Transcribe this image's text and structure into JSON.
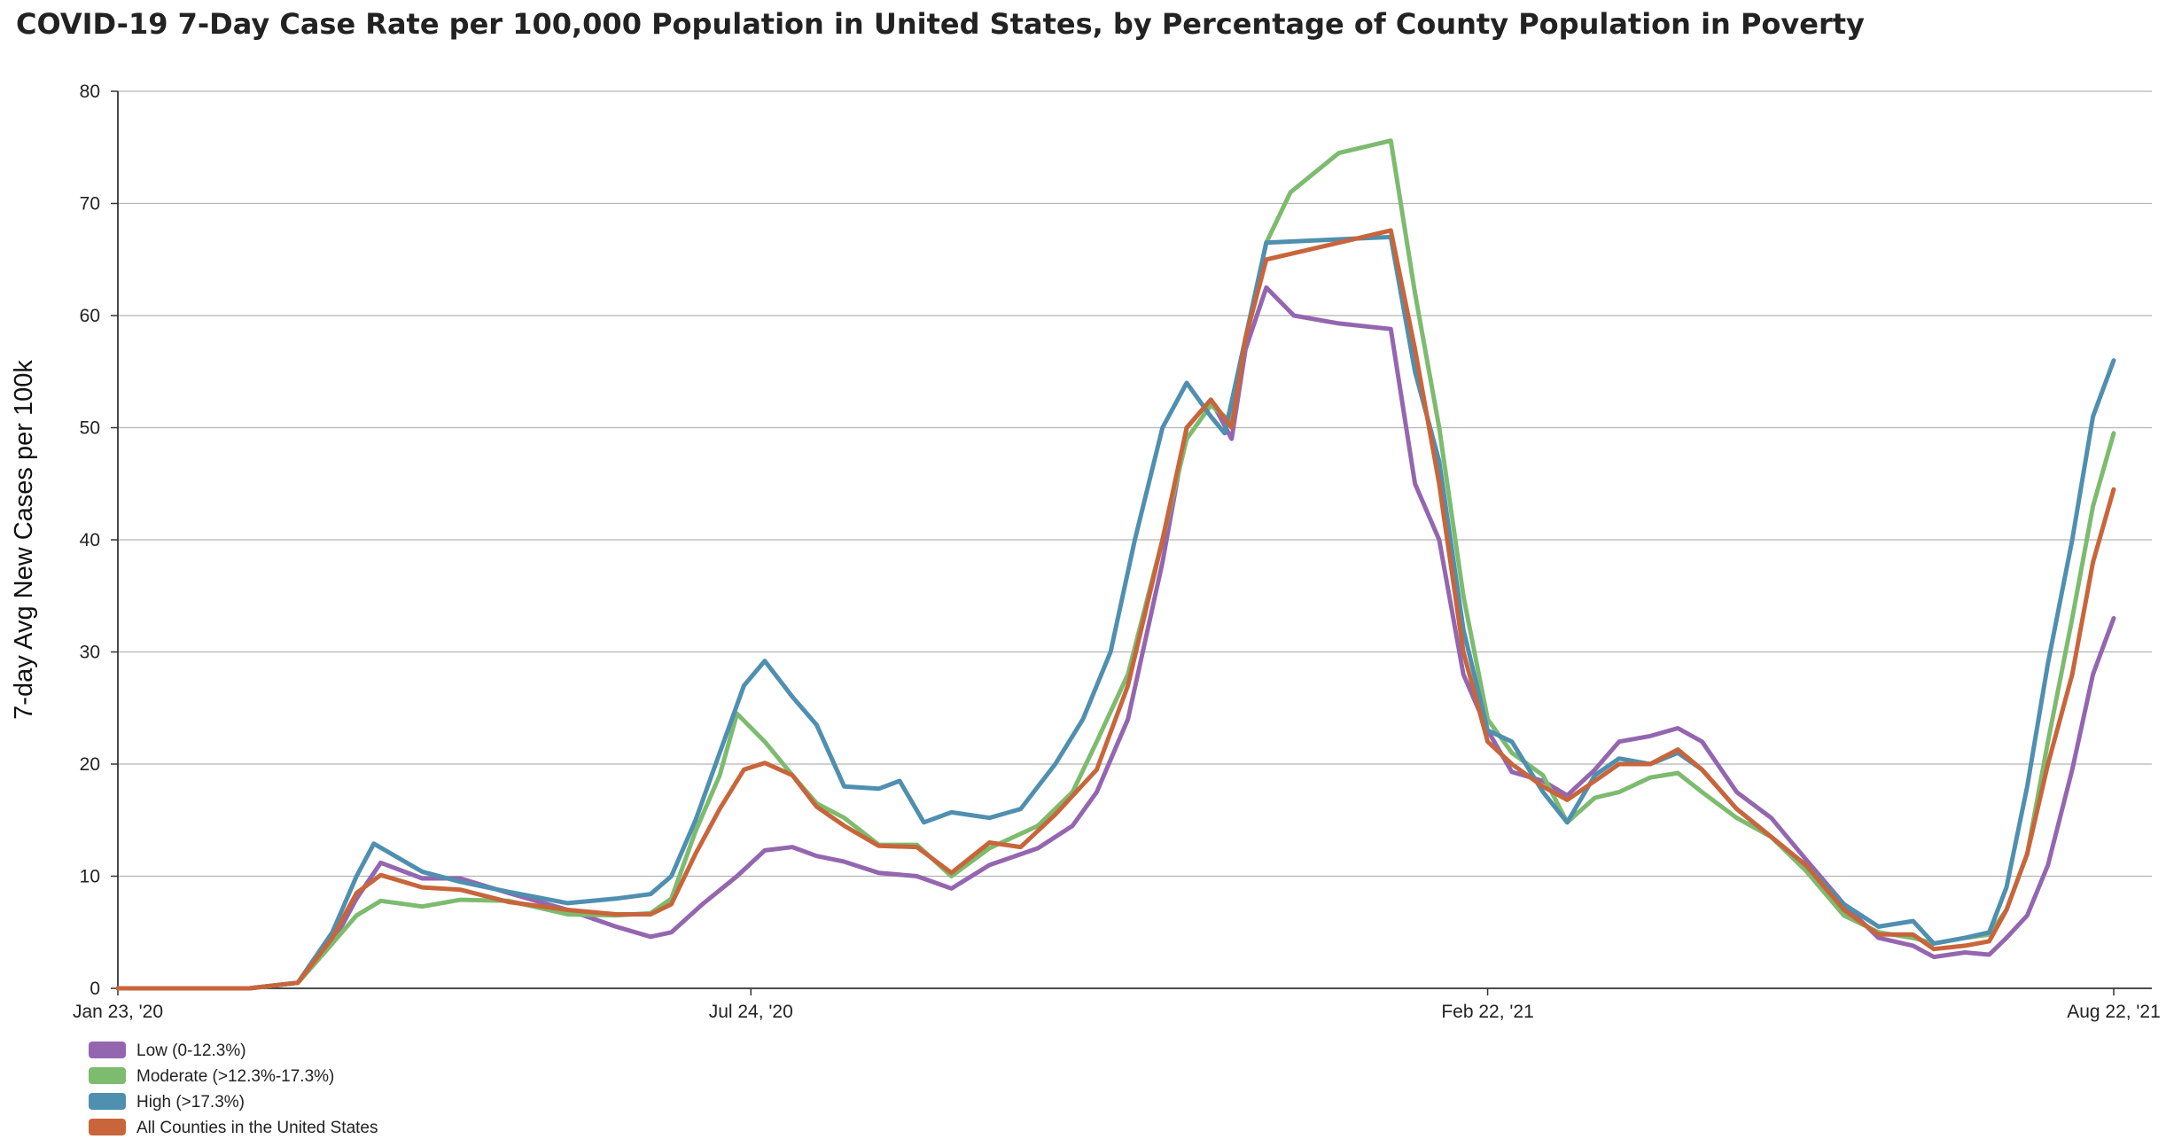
{
  "chart_data": {
    "type": "line",
    "title": "COVID-19 7-Day Case Rate per 100,000 Population in United States, by Percentage of County Population in Poverty",
    "ylabel": "7-day Avg New Cases per 100k",
    "xlabel": "",
    "x_range": [
      "2020-01-23",
      "2021-08-22"
    ],
    "x_ticks": [
      {
        "date": "2020-01-23",
        "label": "Jan 23, '20"
      },
      {
        "date": "2020-07-24",
        "label": "Jul 24, '20"
      },
      {
        "date": "2021-02-22",
        "label": "Feb 22, '21"
      },
      {
        "date": "2021-08-22",
        "label": "Aug 22, '21"
      }
    ],
    "ylim": [
      0,
      80
    ],
    "y_ticks": [
      0,
      10,
      20,
      30,
      40,
      50,
      60,
      70,
      80
    ],
    "grid": "horizontal",
    "legend_position": "bottom-left",
    "series": [
      {
        "name": "Low (0-12.3%)",
        "color": "#9466b0",
        "points": [
          [
            "2020-01-23",
            0
          ],
          [
            "2020-03-01",
            0
          ],
          [
            "2020-03-15",
            0.5
          ],
          [
            "2020-03-25",
            4
          ],
          [
            "2020-04-01",
            8
          ],
          [
            "2020-04-08",
            11.2
          ],
          [
            "2020-04-20",
            9.8
          ],
          [
            "2020-05-01",
            9.8
          ],
          [
            "2020-05-15",
            8.5
          ],
          [
            "2020-06-01",
            7
          ],
          [
            "2020-06-15",
            5.5
          ],
          [
            "2020-06-25",
            4.6
          ],
          [
            "2020-07-01",
            5
          ],
          [
            "2020-07-10",
            7.5
          ],
          [
            "2020-07-20",
            10
          ],
          [
            "2020-07-28",
            12.3
          ],
          [
            "2020-08-05",
            12.6
          ],
          [
            "2020-08-12",
            11.8
          ],
          [
            "2020-08-20",
            11.3
          ],
          [
            "2020-08-30",
            10.3
          ],
          [
            "2020-09-10",
            10
          ],
          [
            "2020-09-20",
            8.9
          ],
          [
            "2020-10-01",
            11
          ],
          [
            "2020-10-15",
            12.5
          ],
          [
            "2020-10-25",
            14.5
          ],
          [
            "2020-11-01",
            17.5
          ],
          [
            "2020-11-10",
            24
          ],
          [
            "2020-11-20",
            38
          ],
          [
            "2020-11-27",
            50
          ],
          [
            "2020-12-04",
            52.5
          ],
          [
            "2020-12-10",
            49
          ],
          [
            "2020-12-14",
            57
          ],
          [
            "2020-12-20",
            62.5
          ],
          [
            "2020-12-28",
            60
          ],
          [
            "2021-01-10",
            59.3
          ],
          [
            "2021-01-25",
            58.8
          ],
          [
            "2021-02-01",
            45
          ],
          [
            "2021-02-08",
            40
          ],
          [
            "2021-02-15",
            28
          ],
          [
            "2021-02-22",
            23
          ],
          [
            "2021-03-01",
            19.3
          ],
          [
            "2021-03-10",
            18.5
          ],
          [
            "2021-03-17",
            17.2
          ],
          [
            "2021-03-25",
            19.5
          ],
          [
            "2021-04-01",
            22
          ],
          [
            "2021-04-10",
            22.5
          ],
          [
            "2021-04-18",
            23.2
          ],
          [
            "2021-04-25",
            22
          ],
          [
            "2021-05-05",
            17.5
          ],
          [
            "2021-05-15",
            15.2
          ],
          [
            "2021-05-25",
            11.5
          ],
          [
            "2021-06-05",
            7.5
          ],
          [
            "2021-06-15",
            4.5
          ],
          [
            "2021-06-25",
            3.8
          ],
          [
            "2021-07-01",
            2.8
          ],
          [
            "2021-07-10",
            3.2
          ],
          [
            "2021-07-17",
            3
          ],
          [
            "2021-07-22",
            4.5
          ],
          [
            "2021-07-28",
            6.5
          ],
          [
            "2021-08-03",
            11
          ],
          [
            "2021-08-10",
            19.5
          ],
          [
            "2021-08-16",
            28
          ],
          [
            "2021-08-22",
            33
          ]
        ]
      },
      {
        "name": "Moderate (>12.3%-17.3%)",
        "color": "#7dbb6f",
        "points": [
          [
            "2020-01-23",
            0
          ],
          [
            "2020-03-01",
            0
          ],
          [
            "2020-03-15",
            0.5
          ],
          [
            "2020-03-25",
            4
          ],
          [
            "2020-04-01",
            6.5
          ],
          [
            "2020-04-08",
            7.8
          ],
          [
            "2020-04-20",
            7.3
          ],
          [
            "2020-05-01",
            7.9
          ],
          [
            "2020-05-15",
            7.8
          ],
          [
            "2020-06-01",
            6.6
          ],
          [
            "2020-06-15",
            6.5
          ],
          [
            "2020-06-25",
            6.7
          ],
          [
            "2020-07-01",
            8
          ],
          [
            "2020-07-08",
            14
          ],
          [
            "2020-07-15",
            19
          ],
          [
            "2020-07-20",
            24.5
          ],
          [
            "2020-07-28",
            22
          ],
          [
            "2020-08-05",
            19
          ],
          [
            "2020-08-12",
            16.5
          ],
          [
            "2020-08-20",
            15.2
          ],
          [
            "2020-08-30",
            12.8
          ],
          [
            "2020-09-10",
            12.8
          ],
          [
            "2020-09-20",
            10
          ],
          [
            "2020-10-01",
            12.5
          ],
          [
            "2020-10-15",
            14.5
          ],
          [
            "2020-10-25",
            17.5
          ],
          [
            "2020-11-01",
            22
          ],
          [
            "2020-11-10",
            28
          ],
          [
            "2020-11-20",
            40
          ],
          [
            "2020-11-27",
            49
          ],
          [
            "2020-12-04",
            52
          ],
          [
            "2020-12-10",
            50.5
          ],
          [
            "2020-12-14",
            58
          ],
          [
            "2020-12-20",
            66.5
          ],
          [
            "2020-12-27",
            71
          ],
          [
            "2021-01-10",
            74.5
          ],
          [
            "2021-01-25",
            75.6
          ],
          [
            "2021-02-01",
            62
          ],
          [
            "2021-02-08",
            50
          ],
          [
            "2021-02-15",
            35
          ],
          [
            "2021-02-22",
            24
          ],
          [
            "2021-03-01",
            21
          ],
          [
            "2021-03-10",
            19
          ],
          [
            "2021-03-17",
            14.8
          ],
          [
            "2021-03-25",
            17
          ],
          [
            "2021-04-01",
            17.5
          ],
          [
            "2021-04-10",
            18.8
          ],
          [
            "2021-04-18",
            19.2
          ],
          [
            "2021-04-25",
            17.5
          ],
          [
            "2021-05-05",
            15.2
          ],
          [
            "2021-05-15",
            13.5
          ],
          [
            "2021-05-25",
            10.5
          ],
          [
            "2021-06-05",
            6.5
          ],
          [
            "2021-06-15",
            5
          ],
          [
            "2021-06-25",
            4.5
          ],
          [
            "2021-07-01",
            4
          ],
          [
            "2021-07-10",
            4.5
          ],
          [
            "2021-07-17",
            4.8
          ],
          [
            "2021-07-22",
            7
          ],
          [
            "2021-07-28",
            12
          ],
          [
            "2021-08-03",
            22
          ],
          [
            "2021-08-10",
            33
          ],
          [
            "2021-08-16",
            43
          ],
          [
            "2021-08-22",
            49.5
          ]
        ]
      },
      {
        "name": "High (>17.3%)",
        "color": "#4f8fb0",
        "points": [
          [
            "2020-01-23",
            0
          ],
          [
            "2020-03-01",
            0
          ],
          [
            "2020-03-15",
            0.5
          ],
          [
            "2020-03-25",
            5
          ],
          [
            "2020-04-01",
            10
          ],
          [
            "2020-04-06",
            12.9
          ],
          [
            "2020-04-20",
            10.4
          ],
          [
            "2020-05-01",
            9.5
          ],
          [
            "2020-05-15",
            8.6
          ],
          [
            "2020-06-01",
            7.6
          ],
          [
            "2020-06-15",
            8
          ],
          [
            "2020-06-25",
            8.4
          ],
          [
            "2020-07-01",
            10
          ],
          [
            "2020-07-08",
            15
          ],
          [
            "2020-07-15",
            21
          ],
          [
            "2020-07-22",
            27
          ],
          [
            "2020-07-28",
            29.2
          ],
          [
            "2020-08-05",
            26
          ],
          [
            "2020-08-12",
            23.5
          ],
          [
            "2020-08-20",
            18
          ],
          [
            "2020-08-30",
            17.8
          ],
          [
            "2020-09-05",
            18.5
          ],
          [
            "2020-09-12",
            14.8
          ],
          [
            "2020-09-20",
            15.7
          ],
          [
            "2020-10-01",
            15.2
          ],
          [
            "2020-10-10",
            16
          ],
          [
            "2020-10-20",
            20
          ],
          [
            "2020-10-28",
            24
          ],
          [
            "2020-11-05",
            30
          ],
          [
            "2020-11-12",
            40
          ],
          [
            "2020-11-20",
            50
          ],
          [
            "2020-11-27",
            54
          ],
          [
            "2020-12-04",
            51
          ],
          [
            "2020-12-08",
            49.5
          ],
          [
            "2020-12-14",
            58
          ],
          [
            "2020-12-20",
            66.5
          ],
          [
            "2021-01-10",
            66.8
          ],
          [
            "2021-01-25",
            67
          ],
          [
            "2021-02-01",
            55
          ],
          [
            "2021-02-08",
            47
          ],
          [
            "2021-02-15",
            32
          ],
          [
            "2021-02-22",
            23
          ],
          [
            "2021-03-01",
            22
          ],
          [
            "2021-03-10",
            17.5
          ],
          [
            "2021-03-17",
            14.8
          ],
          [
            "2021-03-25",
            19
          ],
          [
            "2021-04-01",
            20.5
          ],
          [
            "2021-04-10",
            20
          ],
          [
            "2021-04-18",
            21
          ],
          [
            "2021-04-25",
            19.5
          ],
          [
            "2021-05-05",
            16
          ],
          [
            "2021-05-15",
            13.5
          ],
          [
            "2021-05-25",
            11
          ],
          [
            "2021-06-05",
            7.5
          ],
          [
            "2021-06-15",
            5.5
          ],
          [
            "2021-06-25",
            6
          ],
          [
            "2021-07-01",
            4
          ],
          [
            "2021-07-10",
            4.5
          ],
          [
            "2021-07-17",
            5
          ],
          [
            "2021-07-22",
            9
          ],
          [
            "2021-07-28",
            18
          ],
          [
            "2021-08-03",
            29
          ],
          [
            "2021-08-10",
            40
          ],
          [
            "2021-08-16",
            51
          ],
          [
            "2021-08-22",
            56
          ]
        ]
      },
      {
        "name": "All Counties in the United States",
        "color": "#c8653b",
        "points": [
          [
            "2020-01-23",
            0
          ],
          [
            "2020-03-01",
            0
          ],
          [
            "2020-03-15",
            0.5
          ],
          [
            "2020-03-25",
            4.5
          ],
          [
            "2020-04-01",
            8.5
          ],
          [
            "2020-04-08",
            10.1
          ],
          [
            "2020-04-20",
            9
          ],
          [
            "2020-05-01",
            8.8
          ],
          [
            "2020-05-15",
            7.7
          ],
          [
            "2020-06-01",
            7
          ],
          [
            "2020-06-15",
            6.6
          ],
          [
            "2020-06-25",
            6.6
          ],
          [
            "2020-07-01",
            7.5
          ],
          [
            "2020-07-08",
            12
          ],
          [
            "2020-07-15",
            16
          ],
          [
            "2020-07-22",
            19.5
          ],
          [
            "2020-07-28",
            20.1
          ],
          [
            "2020-08-05",
            19
          ],
          [
            "2020-08-12",
            16.2
          ],
          [
            "2020-08-20",
            14.5
          ],
          [
            "2020-08-30",
            12.7
          ],
          [
            "2020-09-10",
            12.6
          ],
          [
            "2020-09-20",
            10.3
          ],
          [
            "2020-10-01",
            13
          ],
          [
            "2020-10-10",
            12.6
          ],
          [
            "2020-10-20",
            15.5
          ],
          [
            "2020-11-01",
            19.5
          ],
          [
            "2020-11-10",
            27
          ],
          [
            "2020-11-20",
            40
          ],
          [
            "2020-11-27",
            50
          ],
          [
            "2020-12-04",
            52.5
          ],
          [
            "2020-12-10",
            50
          ],
          [
            "2020-12-14",
            58
          ],
          [
            "2020-12-20",
            65
          ],
          [
            "2021-01-10",
            66.5
          ],
          [
            "2021-01-25",
            67.6
          ],
          [
            "2021-02-01",
            57
          ],
          [
            "2021-02-08",
            45
          ],
          [
            "2021-02-15",
            30
          ],
          [
            "2021-02-22",
            22
          ],
          [
            "2021-03-01",
            20
          ],
          [
            "2021-03-10",
            18
          ],
          [
            "2021-03-17",
            16.8
          ],
          [
            "2021-03-25",
            18.5
          ],
          [
            "2021-04-01",
            20
          ],
          [
            "2021-04-10",
            20
          ],
          [
            "2021-04-18",
            21.3
          ],
          [
            "2021-04-25",
            19.5
          ],
          [
            "2021-05-05",
            16
          ],
          [
            "2021-05-15",
            13.5
          ],
          [
            "2021-05-25",
            11
          ],
          [
            "2021-06-05",
            7
          ],
          [
            "2021-06-15",
            4.8
          ],
          [
            "2021-06-25",
            4.8
          ],
          [
            "2021-07-01",
            3.5
          ],
          [
            "2021-07-10",
            3.8
          ],
          [
            "2021-07-17",
            4.2
          ],
          [
            "2021-07-22",
            7
          ],
          [
            "2021-07-28",
            12
          ],
          [
            "2021-08-03",
            20
          ],
          [
            "2021-08-10",
            28
          ],
          [
            "2021-08-16",
            38
          ],
          [
            "2021-08-22",
            44.5
          ]
        ]
      }
    ]
  }
}
